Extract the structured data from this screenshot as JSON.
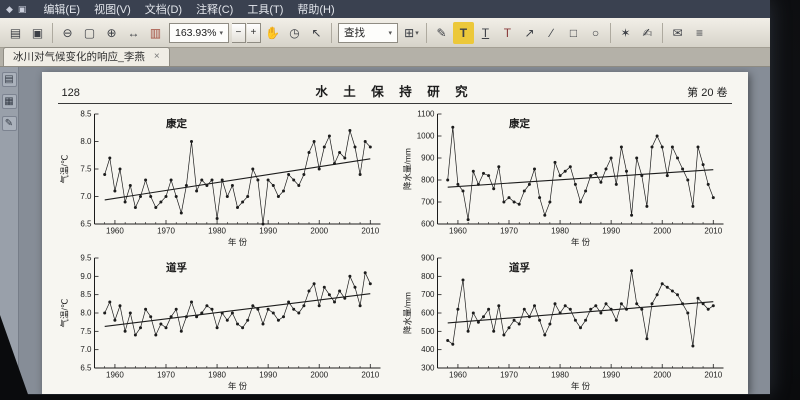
{
  "window": {
    "menubar": {
      "win_icons": [
        {
          "name": "app-icon",
          "glyph": "◆"
        },
        {
          "name": "window-icon",
          "glyph": "▣"
        }
      ],
      "items": [
        {
          "name": "menu-edit",
          "label": "编辑(E)"
        },
        {
          "name": "menu-view",
          "label": "视图(V)"
        },
        {
          "name": "menu-document",
          "label": "文档(D)"
        },
        {
          "name": "menu-comment",
          "label": "注释(C)"
        },
        {
          "name": "menu-tools",
          "label": "工具(T)"
        },
        {
          "name": "menu-help",
          "label": "帮助(H)"
        }
      ]
    },
    "toolbar": {
      "zoom_value": "163.93%",
      "items": [
        {
          "t": "icon",
          "name": "open-file-icon",
          "g": "▤"
        },
        {
          "t": "icon",
          "name": "print-icon",
          "g": "▣"
        },
        {
          "t": "sep"
        },
        {
          "t": "icon",
          "name": "zoom-out-tool-icon",
          "g": "⊖"
        },
        {
          "t": "icon",
          "name": "marquee-zoom-icon",
          "g": "▢"
        },
        {
          "t": "icon",
          "name": "zoom-in-tool-icon",
          "g": "⊕"
        },
        {
          "t": "icon",
          "name": "fit-width-icon",
          "g": "↔"
        },
        {
          "t": "icon",
          "name": "actual-size-icon",
          "g": "▥",
          "c": "#a24b3c"
        },
        {
          "t": "zoom",
          "name": "zoom-level-select",
          "value": "163.93%",
          "caret": "▾",
          "plus": "+",
          "minus": "−"
        },
        {
          "t": "icon",
          "name": "hand-tool-icon",
          "g": "✋"
        },
        {
          "t": "icon",
          "name": "snapshot-icon",
          "g": "◷"
        },
        {
          "t": "icon",
          "name": "select-tool-icon",
          "g": "↖"
        },
        {
          "t": "sep"
        },
        {
          "t": "combo",
          "name": "find-box",
          "value": "查找",
          "caret": "▾"
        },
        {
          "t": "icon",
          "name": "page-layout-icon",
          "g": "⊞",
          "caret": "▾"
        },
        {
          "t": "sep"
        },
        {
          "t": "icon",
          "name": "note-comment-icon",
          "g": "✎"
        },
        {
          "t": "icon",
          "name": "highlight-text-icon",
          "g": "T",
          "bg": "#ecc83a"
        },
        {
          "t": "icon",
          "name": "underline-text-icon",
          "g": "T",
          "u": true
        },
        {
          "t": "icon",
          "name": "strikeout-text-icon",
          "g": "T",
          "c": "#8a3b3b"
        },
        {
          "t": "icon",
          "name": "arrow-annotation-icon",
          "g": "↗"
        },
        {
          "t": "icon",
          "name": "line-annotation-icon",
          "g": "∕"
        },
        {
          "t": "icon",
          "name": "rectangle-annotation-icon",
          "g": "□"
        },
        {
          "t": "icon",
          "name": "ellipse-annotation-icon",
          "g": "○"
        },
        {
          "t": "sep"
        },
        {
          "t": "icon",
          "name": "stamp-icon",
          "g": "✶"
        },
        {
          "t": "icon",
          "name": "signature-icon",
          "g": "✍"
        },
        {
          "t": "sep"
        },
        {
          "t": "icon",
          "name": "send-mail-icon",
          "g": "✉"
        },
        {
          "t": "icon",
          "name": "printer-icon",
          "g": "≡"
        }
      ]
    },
    "tab": {
      "label": "冰川对气候变化的响应_李燕",
      "close": "×"
    },
    "nav_panel": {
      "items": [
        {
          "name": "bookmarks-panel-icon",
          "g": "▤"
        },
        {
          "name": "pages-panel-icon",
          "g": "▦"
        },
        {
          "name": "comments-panel-icon",
          "g": "✎"
        }
      ]
    }
  },
  "page": {
    "number": "128",
    "journal": "水 土 保 持 研 究",
    "volume": "第 20 卷"
  },
  "chart_data": [
    {
      "type": "line",
      "name": "kangding-temperature",
      "title": "康定",
      "ylabel": "气温/℃",
      "xlabel": "年 份",
      "x_start": 1958,
      "xlim": [
        1956,
        2012
      ],
      "xticks": [
        1960,
        1970,
        1980,
        1990,
        2000,
        2010
      ],
      "ylim": [
        6.5,
        8.5
      ],
      "yticks": [
        6.5,
        7.0,
        7.5,
        8.0,
        8.5
      ],
      "y_decimals": 1,
      "trend": "linear",
      "grid": false,
      "values": [
        7.4,
        7.7,
        7.1,
        7.5,
        6.9,
        7.2,
        6.8,
        7.0,
        7.3,
        7.0,
        6.8,
        6.9,
        7.0,
        7.3,
        7.0,
        6.7,
        7.2,
        8.0,
        7.1,
        7.3,
        7.2,
        7.3,
        6.6,
        7.3,
        7.0,
        7.2,
        6.8,
        6.9,
        7.0,
        7.5,
        7.3,
        6.5,
        7.3,
        7.2,
        7.0,
        7.1,
        7.4,
        7.3,
        7.2,
        7.4,
        7.8,
        8.0,
        7.5,
        7.9,
        8.1,
        7.6,
        7.8,
        7.7,
        8.2,
        7.9,
        7.4,
        8.0,
        7.9
      ]
    },
    {
      "type": "line",
      "name": "kangding-precipitation",
      "title": "康定",
      "ylabel": "降水量/mm",
      "xlabel": "年 份",
      "x_start": 1958,
      "xlim": [
        1956,
        2012
      ],
      "xticks": [
        1960,
        1970,
        1980,
        1990,
        2000,
        2010
      ],
      "ylim": [
        600,
        1100
      ],
      "yticks": [
        600,
        700,
        800,
        900,
        1000,
        1100
      ],
      "y_decimals": 0,
      "trend": "linear",
      "grid": false,
      "values": [
        800,
        1040,
        780,
        750,
        620,
        840,
        780,
        830,
        820,
        760,
        860,
        700,
        720,
        700,
        690,
        750,
        780,
        850,
        720,
        640,
        700,
        880,
        820,
        840,
        860,
        780,
        700,
        750,
        820,
        830,
        790,
        850,
        900,
        780,
        950,
        840,
        640,
        900,
        820,
        680,
        950,
        1000,
        950,
        820,
        950,
        900,
        850,
        800,
        680,
        950,
        870,
        780,
        720
      ]
    },
    {
      "type": "line",
      "name": "daofu-temperature",
      "title": "道孚",
      "ylabel": "气温/℃",
      "xlabel": "年 份",
      "x_start": 1958,
      "xlim": [
        1956,
        2012
      ],
      "xticks": [
        1960,
        1970,
        1980,
        1990,
        2000,
        2010
      ],
      "ylim": [
        6.5,
        9.5
      ],
      "yticks": [
        6.5,
        7.0,
        7.5,
        8.0,
        8.5,
        9.0,
        9.5
      ],
      "y_decimals": 1,
      "trend": "linear",
      "grid": false,
      "values": [
        8.0,
        8.3,
        7.8,
        8.2,
        7.5,
        8.0,
        7.4,
        7.6,
        8.1,
        7.9,
        7.4,
        7.7,
        7.6,
        7.9,
        8.1,
        7.5,
        7.9,
        8.3,
        7.9,
        8.0,
        8.2,
        8.1,
        7.6,
        8.0,
        7.8,
        8.0,
        7.7,
        7.6,
        7.8,
        8.2,
        8.1,
        7.7,
        8.1,
        8.0,
        7.8,
        7.9,
        8.3,
        8.1,
        8.0,
        8.2,
        8.6,
        8.8,
        8.2,
        8.7,
        8.5,
        8.3,
        8.6,
        8.4,
        9.0,
        8.7,
        8.2,
        9.1,
        8.8
      ]
    },
    {
      "type": "line",
      "name": "daofu-precipitation",
      "title": "道孚",
      "ylabel": "降水量/mm",
      "xlabel": "年 份",
      "x_start": 1958,
      "xlim": [
        1956,
        2012
      ],
      "xticks": [
        1960,
        1970,
        1980,
        1990,
        2000,
        2010
      ],
      "ylim": [
        300,
        900
      ],
      "yticks": [
        300,
        400,
        500,
        600,
        700,
        800,
        900
      ],
      "y_decimals": 0,
      "trend": "linear",
      "grid": false,
      "values": [
        450,
        430,
        620,
        780,
        500,
        600,
        550,
        580,
        620,
        500,
        640,
        480,
        520,
        560,
        540,
        620,
        580,
        640,
        560,
        480,
        540,
        650,
        600,
        640,
        620,
        560,
        520,
        560,
        620,
        640,
        600,
        650,
        620,
        560,
        650,
        620,
        830,
        650,
        620,
        460,
        650,
        700,
        760,
        740,
        720,
        700,
        650,
        600,
        420,
        680,
        650,
        620,
        640
      ]
    }
  ]
}
